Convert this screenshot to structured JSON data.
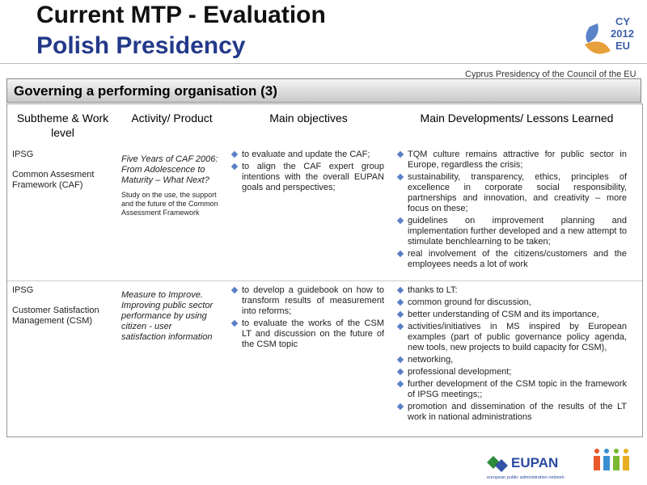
{
  "header": {
    "title": "Current MTP - Evaluation",
    "subtitle": "Polish Presidency",
    "presidency": "Cyprus Presidency of the Council of the EU",
    "logo": [
      "CY",
      "2012",
      "EU"
    ]
  },
  "section_title": "Governing a performing organisation (3)",
  "table": {
    "headers": [
      "Subtheme & Work level",
      "Activity/ Product",
      "Main objectives",
      "Main Developments/ Lessons Learned"
    ],
    "rows": [
      {
        "subtheme": [
          "IPSG",
          "Common Assesment Framework (CAF)"
        ],
        "activity": "Five Years of CAF 2006: From Adolescence to Maturity – What Next?",
        "note": "Study on the use, the support and the future of the Common Assessment Framework",
        "objectives": [
          "to evaluate and update the CAF;",
          "to align the CAF expert group intentions with the overall EUPAN goals and perspectives;"
        ],
        "developments": [
          "TQM culture remains attractive for public sector in Europe, regardless the crisis;",
          "sustainability, transparency, ethics, principles of excellence in corporate social responsibility, partnerships and innovation, and creativity – more focus on these;",
          "guidelines on improvement planning and implementation further developed and a new attempt to stimulate benchlearning to be taken;",
          "real involvement of the citizens/customers and the employees needs a lot of work"
        ]
      },
      {
        "subtheme": [
          "IPSG",
          "Customer Satisfaction Management (CSM)"
        ],
        "activity": "Measure to Improve. Improving public sector performance by using citizen - user satisfaction information",
        "objectives": [
          "to develop a guidebook on how to transform results of measurement into reforms;",
          "to evaluate the works of the CSM LT and discussion on the future of the CSM topic"
        ],
        "developments": [
          "thanks to LT:",
          "common ground for discussion,",
          "better understanding of CSM and its importance,",
          "activities/initiatives in MS inspired by European examples (part of public governance policy agenda, new tools, new projects to build capacity for CSM),",
          "networking,",
          "professional development;",
          "further development of the CSM topic in the framework of IPSG meetings;;",
          "promotion and dissemination of the results of the LT work in national administrations"
        ]
      }
    ]
  },
  "footer": {
    "eupan": "EUPAN",
    "eupan_caption": "european public administration network"
  }
}
